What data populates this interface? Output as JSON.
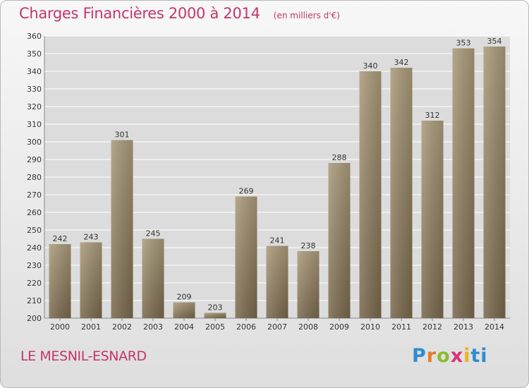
{
  "chart_data": {
    "type": "bar",
    "title": "Charges Financières 2000 à 2014",
    "subtitle": "(en milliers d'€)",
    "categories": [
      "2000",
      "2001",
      "2002",
      "2003",
      "2004",
      "2005",
      "2006",
      "2007",
      "2008",
      "2009",
      "2010",
      "2011",
      "2012",
      "2013",
      "2014"
    ],
    "values": [
      242,
      243,
      301,
      245,
      209,
      203,
      269,
      241,
      238,
      288,
      340,
      342,
      312,
      353,
      354
    ],
    "ylim": [
      200,
      360
    ],
    "yticks": [
      200,
      210,
      220,
      230,
      240,
      250,
      260,
      270,
      280,
      290,
      300,
      310,
      320,
      330,
      340,
      350,
      360
    ],
    "grid": true,
    "colors": {
      "bar_top": "#a89878",
      "bar_bottom": "#76654a",
      "title": "#c2366d"
    }
  },
  "footer": {
    "city": "LE MESNIL-ESNARD",
    "logo_letters": [
      "P",
      "r",
      "o",
      "x",
      "i",
      "ti"
    ]
  }
}
